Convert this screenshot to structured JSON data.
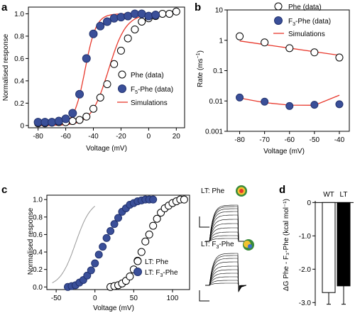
{
  "colors": {
    "blue": "#3a4f99",
    "blue_stroke": "#22326e",
    "red": "#e8382c",
    "gray": "#999999",
    "black": "#000000"
  },
  "chart_data": [
    {
      "id": "a",
      "panel_label": "a",
      "type": "scatter",
      "xlabel": "Voltage (mV)",
      "ylabel": "Normalised response",
      "xlim": [
        -87,
        26
      ],
      "ylim": [
        -0.02,
        1.06
      ],
      "xticks": [
        -80,
        -60,
        -40,
        -20,
        0,
        20
      ],
      "yticks": [
        0,
        0.2,
        0.4,
        0.6,
        0.8,
        1.0
      ],
      "ytick_labels": [
        "0",
        "0.2",
        "0.4",
        "0.6",
        "0.8",
        "1.0"
      ],
      "legend": [
        {
          "label": "Phe (data)",
          "kind": "open"
        },
        {
          "label_main": "F",
          "label_sub": "5",
          "label_rest": "-Phe (data)",
          "kind": "filled"
        },
        {
          "label": "Simulations",
          "kind": "line"
        }
      ],
      "series": [
        {
          "name": "Phe (data)",
          "marker": "open",
          "x": [
            -80,
            -75,
            -70,
            -65,
            -60,
            -55,
            -50,
            -45,
            -40,
            -35,
            -30,
            -25,
            -20,
            -15,
            -10,
            -5,
            0,
            5,
            10,
            15,
            20
          ],
          "y": [
            0.02,
            0.02,
            0.025,
            0.03,
            0.03,
            0.04,
            0.05,
            0.08,
            0.15,
            0.25,
            0.37,
            0.55,
            0.67,
            0.78,
            0.86,
            0.93,
            0.96,
            0.98,
            1.0,
            1.0,
            1.02
          ]
        },
        {
          "name": "F5-Phe (data)",
          "marker": "filled",
          "x": [
            -80,
            -75,
            -70,
            -65,
            -60,
            -55,
            -50,
            -45,
            -40,
            -35,
            -30,
            -25,
            -20,
            -15,
            -10,
            -5,
            0,
            5
          ],
          "y": [
            0.03,
            0.03,
            0.03,
            0.04,
            0.06,
            0.11,
            0.28,
            0.6,
            0.82,
            0.89,
            0.93,
            0.96,
            0.97,
            0.98,
            1.0,
            1.0,
            0.98,
            0.99
          ]
        }
      ],
      "curves": [
        {
          "v50": -29,
          "k": 6.3,
          "color": "red"
        },
        {
          "v50": -46,
          "k": 4.0,
          "color": "red"
        }
      ]
    },
    {
      "id": "b",
      "panel_label": "b",
      "type": "scatter",
      "scale_y": "log",
      "xlabel": "Voltage (mV)",
      "ylabel_main": "Rate (ms",
      "ylabel_sup": "−1",
      "ylabel_end": ")",
      "xlim": [
        -85,
        -36
      ],
      "ylim": [
        0.001,
        10
      ],
      "xticks": [
        -80,
        -70,
        -60,
        -50,
        -40
      ],
      "yticks": [
        0.001,
        0.01,
        0.1,
        1,
        10
      ],
      "ytick_labels": [
        "0.001",
        "0.01",
        "0.1",
        "1",
        "10"
      ],
      "legend": [
        {
          "label": "Phe (data)",
          "kind": "open"
        },
        {
          "label_main": "F",
          "label_sub": "3",
          "label_rest": "-Phe (data)",
          "kind": "filled"
        },
        {
          "label": "Simulations",
          "kind": "line"
        }
      ],
      "series": [
        {
          "name": "Phe (data)",
          "marker": "open",
          "x": [
            -80,
            -70,
            -60,
            -50,
            -40
          ],
          "y": [
            1.35,
            0.85,
            0.55,
            0.4,
            0.27
          ]
        },
        {
          "name": "F3-Phe (data)",
          "marker": "filled",
          "x": [
            -80,
            -70,
            -60,
            -50,
            -40
          ],
          "y": [
            0.013,
            0.0095,
            0.0068,
            0.0075,
            0.0078
          ]
        }
      ],
      "sim_lines": [
        {
          "x": [
            -80,
            -70,
            -60,
            -50,
            -40
          ],
          "y": [
            0.95,
            0.72,
            0.55,
            0.42,
            0.32
          ]
        },
        {
          "x": [
            -80,
            -70,
            -60,
            -50,
            -40
          ],
          "y": [
            0.0125,
            0.0088,
            0.0073,
            0.0072,
            0.0155
          ]
        }
      ]
    },
    {
      "id": "c",
      "panel_label": "c",
      "type": "scatter",
      "xlabel": "Voltage (mV)",
      "ylabel": "Normalised response",
      "xlim": [
        -62,
        122
      ],
      "ylim": [
        -0.03,
        1.05
      ],
      "xticks": [
        -50,
        0,
        50,
        100
      ],
      "yticks": [
        0,
        0.2,
        0.4,
        0.6,
        0.8,
        1.0
      ],
      "ytick_labels": [
        "0.0",
        "0.2",
        "0.4",
        "0.6",
        "0.8",
        "1.0"
      ],
      "legend": [
        {
          "label": "LT: Phe",
          "kind": "open"
        },
        {
          "label_main": "LT: F",
          "label_sub": "3",
          "label_rest": "-Phe",
          "kind": "filled"
        }
      ],
      "series": [
        {
          "name": "LT: Phe",
          "marker": "open",
          "x": [
            20,
            25,
            30,
            35,
            40,
            45,
            50,
            55,
            60,
            65,
            70,
            75,
            80,
            85,
            90,
            95,
            100,
            105,
            110,
            115
          ],
          "y": [
            0.0,
            0.01,
            0.02,
            0.04,
            0.07,
            0.12,
            0.2,
            0.3,
            0.4,
            0.52,
            0.6,
            0.7,
            0.78,
            0.85,
            0.9,
            0.93,
            0.96,
            0.98,
            1.0,
            1.0
          ]
        },
        {
          "name": "LT: F3-Phe",
          "marker": "filled",
          "x": [
            -35,
            -30,
            -25,
            -20,
            -15,
            -10,
            -5,
            0,
            5,
            10,
            15,
            20,
            25,
            30,
            35,
            40,
            45,
            50,
            55,
            60,
            65,
            70,
            75
          ],
          "y": [
            0.0,
            0.01,
            0.02,
            0.05,
            0.08,
            0.13,
            0.19,
            0.27,
            0.37,
            0.46,
            0.56,
            0.64,
            0.72,
            0.79,
            0.86,
            0.9,
            0.94,
            0.96,
            0.98,
            0.99,
            1.0,
            1.0,
            1.0
          ]
        }
      ],
      "curves": [
        {
          "v50": -25,
          "k": 10,
          "color": "gray",
          "x_from": -55,
          "x_to": 0
        }
      ],
      "insets": [
        {
          "label": "LT: Phe"
        },
        {
          "label_main": "LT: F",
          "label_sub": "3",
          "label_rest": "-Phe"
        }
      ]
    },
    {
      "id": "d",
      "panel_label": "d",
      "type": "bar",
      "categories": [
        "WT",
        "LT"
      ],
      "values": [
        -2.7,
        -2.5
      ],
      "errors": [
        0.35,
        0.55
      ],
      "ylim": [
        -3.1,
        0.05
      ],
      "yticks": [
        0,
        -1.0,
        -2.0,
        -3.0
      ],
      "ytick_labels": [
        "0",
        "-1.0",
        "-2.0",
        "-3.0"
      ],
      "ylabel": "ΔG Phe - F₃-Phe (kcal mol⁻¹)"
    }
  ]
}
